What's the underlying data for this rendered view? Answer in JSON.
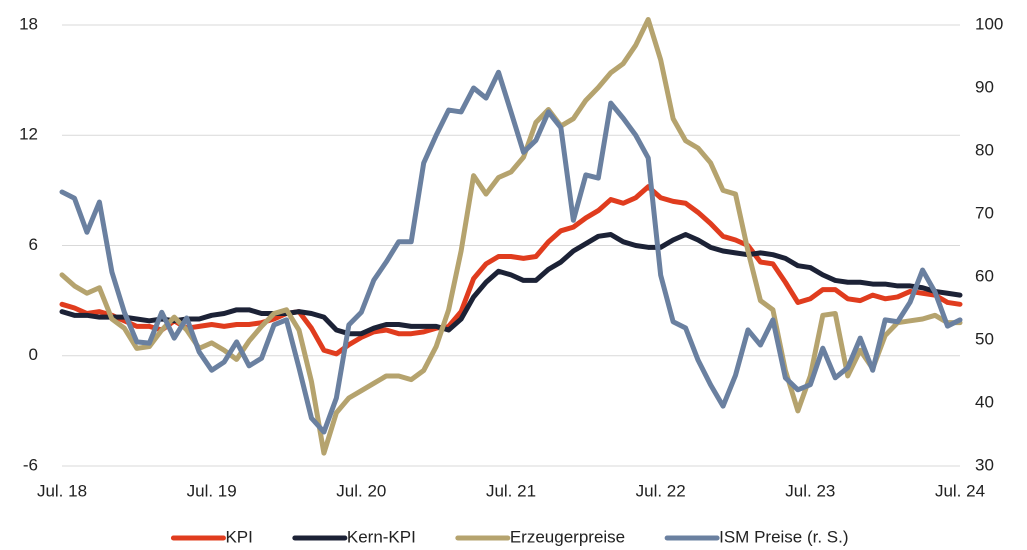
{
  "chart_data": {
    "type": "line",
    "categories": [
      "Jul. 18",
      null,
      null,
      null,
      null,
      null,
      null,
      null,
      null,
      null,
      null,
      null,
      "Jul. 19",
      null,
      null,
      null,
      null,
      null,
      null,
      null,
      null,
      null,
      null,
      null,
      "Jul. 20",
      null,
      null,
      null,
      null,
      null,
      null,
      null,
      null,
      null,
      null,
      null,
      "Jul. 21",
      null,
      null,
      null,
      null,
      null,
      null,
      null,
      null,
      null,
      null,
      null,
      "Jul. 22",
      null,
      null,
      null,
      null,
      null,
      null,
      null,
      null,
      null,
      null,
      null,
      "Jul. 23",
      null,
      null,
      null,
      null,
      null,
      null,
      null,
      null,
      null,
      null,
      null,
      "Jul. 24"
    ],
    "series": [
      {
        "name": "KPI",
        "color": "#e03c1e",
        "values": [
          2.8,
          2.6,
          2.3,
          2.4,
          2.2,
          1.9,
          1.6,
          1.6,
          1.4,
          1.9,
          1.5,
          1.6,
          1.7,
          1.6,
          1.7,
          1.7,
          1.8,
          2.0,
          2.3,
          2.4,
          1.5,
          0.3,
          0.1,
          0.6,
          1.0,
          1.3,
          1.4,
          1.2,
          1.2,
          1.3,
          1.5,
          1.6,
          2.4,
          4.2,
          5.0,
          5.4,
          5.4,
          5.3,
          5.4,
          6.2,
          6.8,
          7.0,
          7.5,
          7.9,
          8.5,
          8.3,
          8.6,
          9.2,
          8.6,
          8.4,
          8.3,
          7.8,
          7.2,
          6.5,
          6.3,
          6.0,
          5.1,
          5.0,
          4.0,
          2.9,
          3.1,
          3.6,
          3.6,
          3.1,
          3.0,
          3.3,
          3.1,
          3.2,
          3.5,
          3.4,
          3.3,
          2.9,
          2.8
        ]
      },
      {
        "name": "Kern-KPI",
        "color": "#1c2236",
        "values": [
          2.4,
          2.2,
          2.2,
          2.1,
          2.1,
          2.1,
          2.0,
          1.9,
          2.0,
          1.9,
          2.0,
          2.0,
          2.2,
          2.3,
          2.5,
          2.5,
          2.3,
          2.3,
          2.3,
          2.4,
          2.3,
          2.1,
          1.4,
          1.2,
          1.2,
          1.5,
          1.7,
          1.7,
          1.6,
          1.6,
          1.6,
          1.4,
          2.0,
          3.2,
          4.0,
          4.6,
          4.4,
          4.1,
          4.1,
          4.7,
          5.1,
          5.7,
          6.1,
          6.5,
          6.6,
          6.2,
          6.0,
          5.9,
          5.9,
          6.3,
          6.6,
          6.3,
          5.9,
          5.7,
          5.6,
          5.5,
          5.6,
          5.5,
          5.3,
          4.9,
          4.8,
          4.4,
          4.1,
          4.0,
          4.0,
          3.9,
          3.9,
          3.8,
          3.8,
          3.7,
          3.5,
          3.4,
          3.3
        ]
      },
      {
        "name": "Erzeugerpreise",
        "color": "#b5a36e",
        "values": [
          4.4,
          3.8,
          3.4,
          3.7,
          2.0,
          1.5,
          0.4,
          0.5,
          1.4,
          2.1,
          1.4,
          0.4,
          0.7,
          0.3,
          -0.2,
          0.8,
          1.6,
          2.3,
          2.5,
          1.4,
          -1.4,
          -5.3,
          -3.1,
          -2.3,
          -1.9,
          -1.5,
          -1.1,
          -1.1,
          -1.3,
          -0.8,
          0.5,
          2.5,
          5.7,
          9.8,
          8.8,
          9.7,
          10.0,
          10.8,
          12.7,
          13.4,
          12.5,
          12.9,
          13.9,
          14.6,
          15.4,
          15.9,
          16.9,
          18.3,
          16.1,
          12.9,
          11.7,
          11.3,
          10.5,
          9.0,
          8.8,
          5.7,
          3.0,
          2.5,
          -0.8,
          -3.0,
          -1.1,
          2.2,
          2.3,
          -1.1,
          0.3,
          -0.7,
          1.1,
          1.8,
          1.9,
          2.0,
          2.2,
          1.8,
          1.8
        ]
      },
      {
        "name": "ISM Preise (r. S.)",
        "color": "#6a80a0",
        "axis": "y2",
        "values": [
          73.5,
          72.5,
          67.1,
          71.9,
          60.8,
          54.4,
          49.7,
          49.5,
          54.4,
          50.3,
          53.5,
          48.1,
          45.2,
          46.5,
          49.7,
          45.9,
          47.1,
          52.4,
          53.2,
          45.6,
          37.6,
          35.4,
          40.8,
          52.4,
          54.4,
          59.5,
          62.4,
          65.6,
          65.6,
          78.1,
          82.5,
          86.5,
          86.2,
          90.0,
          88.4,
          92.5,
          86.2,
          79.8,
          81.7,
          86.2,
          83.7,
          69.0,
          76.2,
          75.7,
          87.6,
          85.2,
          82.5,
          78.9,
          60.3,
          52.9,
          51.9,
          46.8,
          42.9,
          39.5,
          44.4,
          51.6,
          49.2,
          53.2,
          44.0,
          42.1,
          42.9,
          48.7,
          44.0,
          45.6,
          50.3,
          45.2,
          53.2,
          52.9,
          56.0,
          61.1,
          57.6,
          52.2,
          53.2
        ]
      }
    ],
    "ylim": [
      -6,
      18
    ],
    "yticks": [
      -6,
      0,
      6,
      12,
      18
    ],
    "y2lim": [
      30,
      100
    ],
    "y2ticks": [
      30,
      40,
      50,
      60,
      70,
      80,
      90,
      100
    ],
    "grid": true,
    "legend": "bottom"
  }
}
